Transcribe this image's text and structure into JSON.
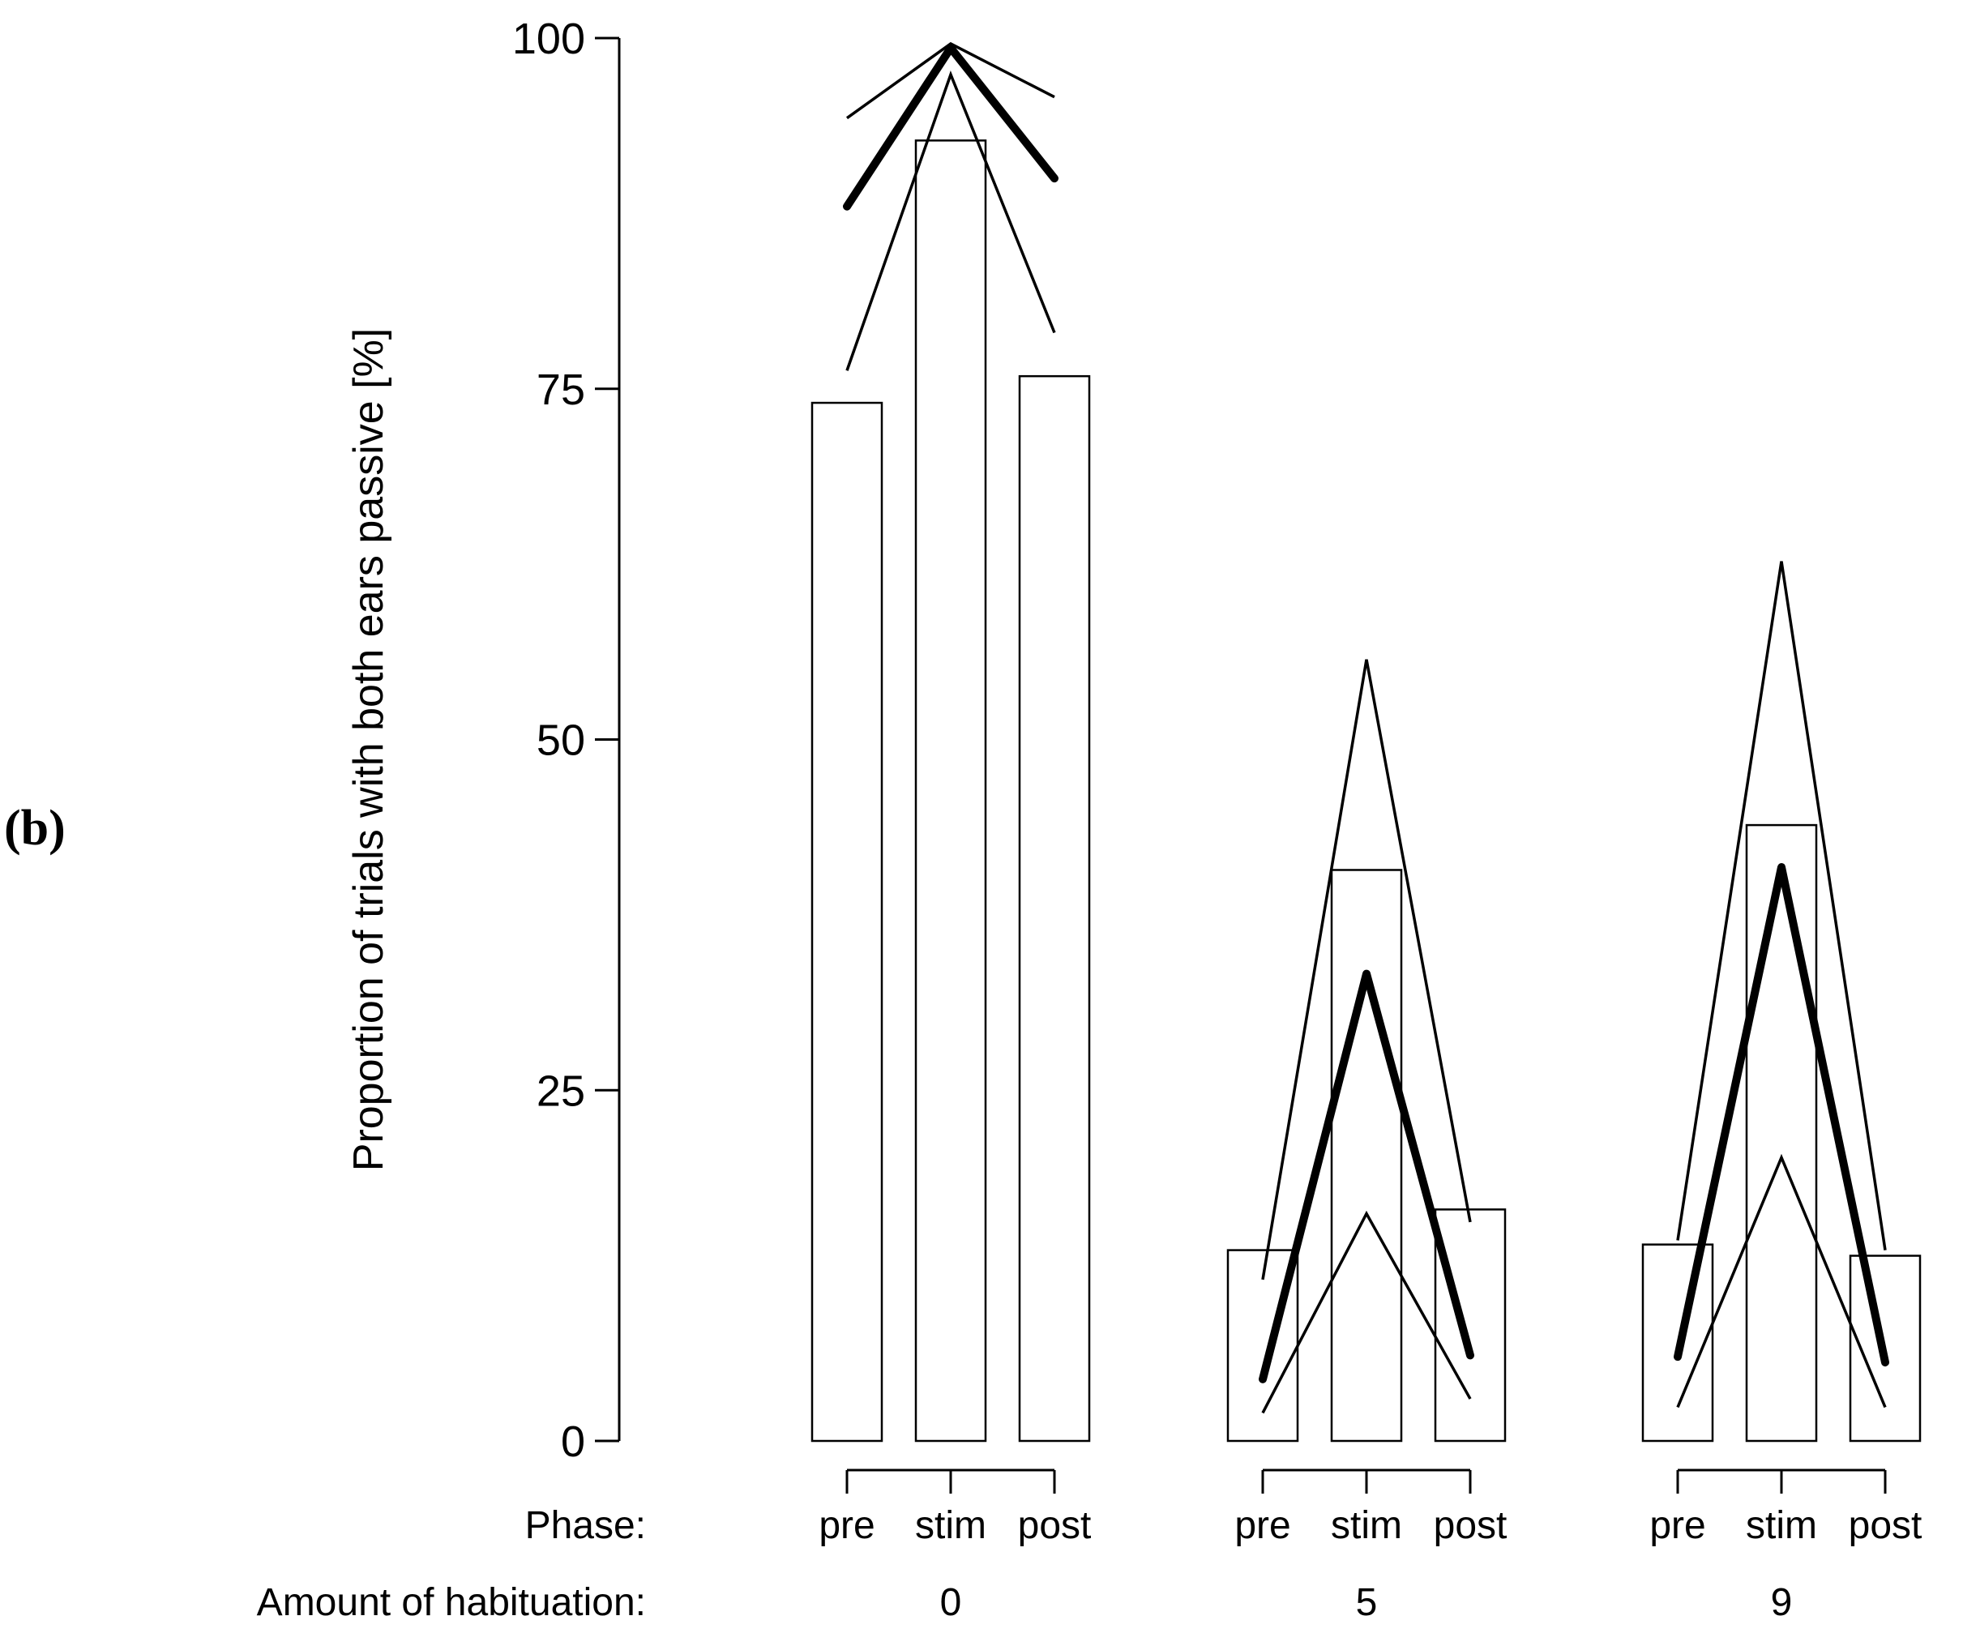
{
  "chart_data": {
    "type": "bar",
    "panel_label": "(b)",
    "ylabel": "Proportion of trials with both ears passive [%]",
    "ylim": [
      0,
      100
    ],
    "yticks": [
      0,
      25,
      50,
      75,
      100
    ],
    "phase_row_label": "Phase:",
    "group_row_label": "Amount of habituation:",
    "groups": [
      {
        "label": "0",
        "phases": [
          "pre",
          "stim",
          "post"
        ],
        "bars": [
          74,
          92.7,
          75.9
        ],
        "median": [
          88,
          99.3,
          90
        ],
        "upper": [
          94.3,
          99.6,
          95.8
        ],
        "lower": [
          76.3,
          97.4,
          79
        ]
      },
      {
        "label": "5",
        "phases": [
          "pre",
          "stim",
          "post"
        ],
        "bars": [
          13.6,
          40.7,
          16.5
        ],
        "median": [
          4.4,
          33.3,
          6.1
        ],
        "upper": [
          11.5,
          55.7,
          15.6
        ],
        "lower": [
          2,
          16.2,
          3
        ]
      },
      {
        "label": "9",
        "phases": [
          "pre",
          "stim",
          "post"
        ],
        "bars": [
          14,
          43.9,
          13.2
        ],
        "median": [
          6,
          40.9,
          5.6
        ],
        "upper": [
          14.3,
          62.7,
          13.6
        ],
        "lower": [
          2.4,
          20.2,
          2.4
        ]
      }
    ],
    "legend": "none",
    "grid": false
  }
}
